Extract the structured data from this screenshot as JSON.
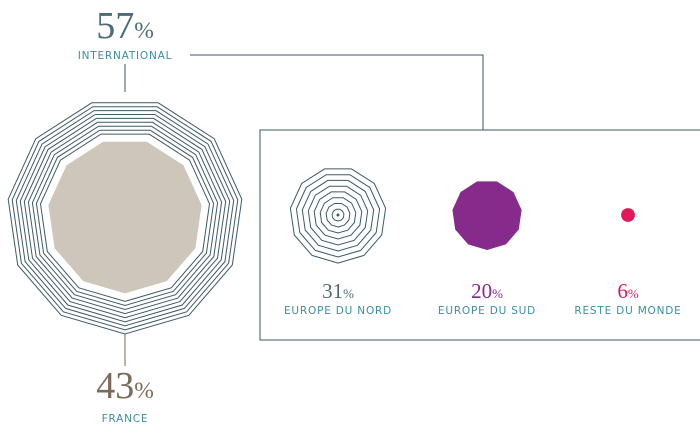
{
  "chart_data": {
    "type": "polygon-infographic",
    "unit": "%",
    "main": [
      {
        "label": "INTERNATIONAL",
        "value": 57,
        "color": "#3d5a66"
      },
      {
        "label": "FRANCE",
        "value": 43,
        "color": "#cfc6bb"
      }
    ],
    "breakdown": [
      {
        "label": "EUROPE DU NORD",
        "value": 31,
        "color": "#3d5a66",
        "style": "rings"
      },
      {
        "label": "EUROPE DU SUD",
        "value": 20,
        "color": "#862a8c",
        "style": "fill"
      },
      {
        "label": "RESTE DU MONDE",
        "value": 6,
        "color": "#e0195a",
        "style": "dot"
      }
    ]
  }
}
